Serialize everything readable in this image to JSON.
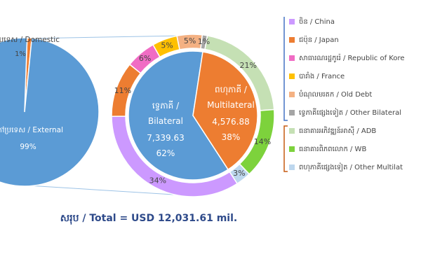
{
  "chart_data": [
    {
      "type": "pie",
      "categories": [
        "ក្នុងប្រទេស / Domestic",
        "ក្រៅប្រទេស / External"
      ],
      "values": [
        1,
        99
      ],
      "value_labels": [
        "1%",
        "99%"
      ],
      "colors": [
        "#ed7d31",
        "#5b9bd5"
      ]
    },
    {
      "type": "pie",
      "categories": [
        "ទ្វេភាគី / Bilateral",
        "ពហុភាគី / Multilateral"
      ],
      "values": [
        7339.63,
        4576.88
      ],
      "value_labels": [
        "7,339.63",
        "4,576.88"
      ],
      "percents": [
        62,
        38
      ],
      "percent_labels": [
        "62%",
        "38%"
      ],
      "colors": [
        "#5b9bd5",
        "#ed7d31"
      ],
      "total": "សរុប / Total = USD 12,031.61 mil."
    },
    {
      "type": "donut",
      "categories": [
        "ចិន / China",
        "ជប៉ុន / Japan",
        "សាធារណរដ្ឋកូរ៉េ / Republic of Kore",
        "បារាំង / France",
        "បំណុលមរតក / Old Debt",
        "ទ្វេភាគីផ្សេងទៀត / Other Bilateral",
        "ធនាគារអភិវឌ្ឍន៍អាស៊ី / ADB",
        "ធនាគារពិភពលោក / WB",
        "ពហុភាគីផ្សេងទៀត / Other Multilat"
      ],
      "values": [
        34,
        11,
        6,
        5,
        5,
        1,
        21,
        14,
        3
      ],
      "value_labels": [
        "34%",
        "11%",
        "6%",
        "5%",
        "5%",
        "1%",
        "21%",
        "14%",
        "3%"
      ],
      "colors": [
        "#cc99ff",
        "#ed7d31",
        "#f06cc4",
        "#ffc000",
        "#f4b183",
        "#a5a5a5",
        "#c5e0b4",
        "#7dd23c",
        "#bdd7ee"
      ],
      "legend": "right"
    }
  ]
}
